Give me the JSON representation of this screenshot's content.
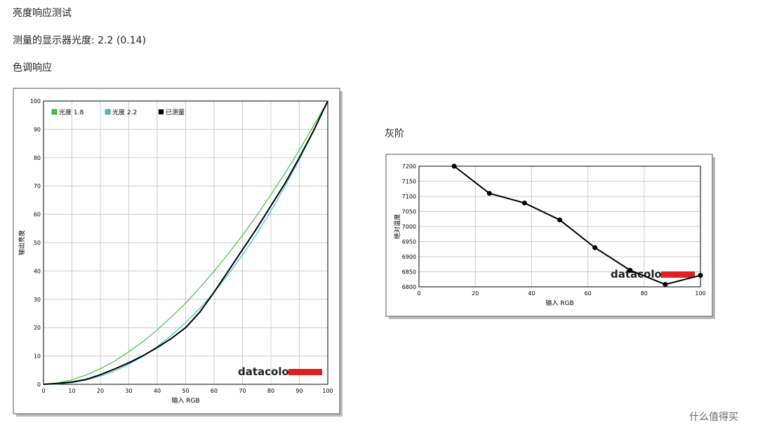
{
  "heading": "亮度响应测试",
  "gamma_line": "测量的显示器光度: 2.2 (0.14)",
  "section_tone": "色调响应",
  "section_gray": "灰阶",
  "watermark": "什么值得买",
  "chart_data": [
    {
      "type": "line",
      "xlabel": "输入 RGB",
      "ylabel": "输出亮度",
      "logo": "datacolor",
      "legend": "upper left",
      "grid": true,
      "xlim": [
        0,
        100
      ],
      "ylim": [
        0,
        100
      ],
      "xticks": [
        0,
        10,
        20,
        30,
        40,
        50,
        60,
        70,
        80,
        90,
        100
      ],
      "yticks": [
        0,
        10,
        20,
        30,
        40,
        50,
        60,
        70,
        80,
        90,
        100
      ],
      "x": [
        0,
        5,
        10,
        15,
        20,
        25,
        30,
        35,
        40,
        45,
        50,
        55,
        60,
        65,
        70,
        75,
        80,
        85,
        90,
        95,
        100
      ],
      "series": [
        {
          "name": "光度 1.8",
          "color": "#33cc33",
          "values": [
            0,
            0.5,
            1.6,
            3.3,
            5.5,
            8.2,
            11.5,
            15.1,
            19.2,
            23.8,
            28.7,
            34.1,
            39.9,
            46.1,
            52.6,
            59.6,
            66.9,
            74.6,
            82.7,
            91.2,
            100
          ]
        },
        {
          "name": "光度 2.2",
          "color": "#33cccc",
          "values": [
            0,
            0.1,
            0.6,
            1.5,
            2.9,
            4.7,
            7.1,
            9.9,
            13.3,
            17.3,
            21.8,
            26.8,
            32.5,
            38.8,
            45.6,
            53.1,
            61.2,
            69.9,
            79.3,
            89.3,
            100
          ]
        },
        {
          "name": "已测量",
          "color": "#000000",
          "values": [
            0,
            0.3,
            0.8,
            1.7,
            3.4,
            5.4,
            7.6,
            10.1,
            13,
            16.2,
            20,
            25.5,
            32.5,
            40,
            47.5,
            55,
            63,
            71,
            80,
            89.5,
            100
          ]
        }
      ]
    },
    {
      "type": "line",
      "xlabel": "输入 RGB",
      "ylabel": "绝对温度",
      "logo": "datacolor",
      "grid": true,
      "markers": true,
      "xlim": [
        0,
        100
      ],
      "ylim": [
        6800,
        7200
      ],
      "xticks": [
        0,
        20,
        40,
        60,
        80,
        100
      ],
      "yticks": [
        6800,
        6850,
        6900,
        6950,
        7000,
        7050,
        7100,
        7150,
        7200
      ],
      "x": [
        12.5,
        25,
        37.5,
        50,
        62.5,
        75,
        87.5,
        100
      ],
      "series": [
        {
          "color": "#000000",
          "values": [
            7200,
            7110,
            7078,
            7022,
            6930,
            6855,
            6808,
            6838
          ]
        }
      ]
    }
  ]
}
